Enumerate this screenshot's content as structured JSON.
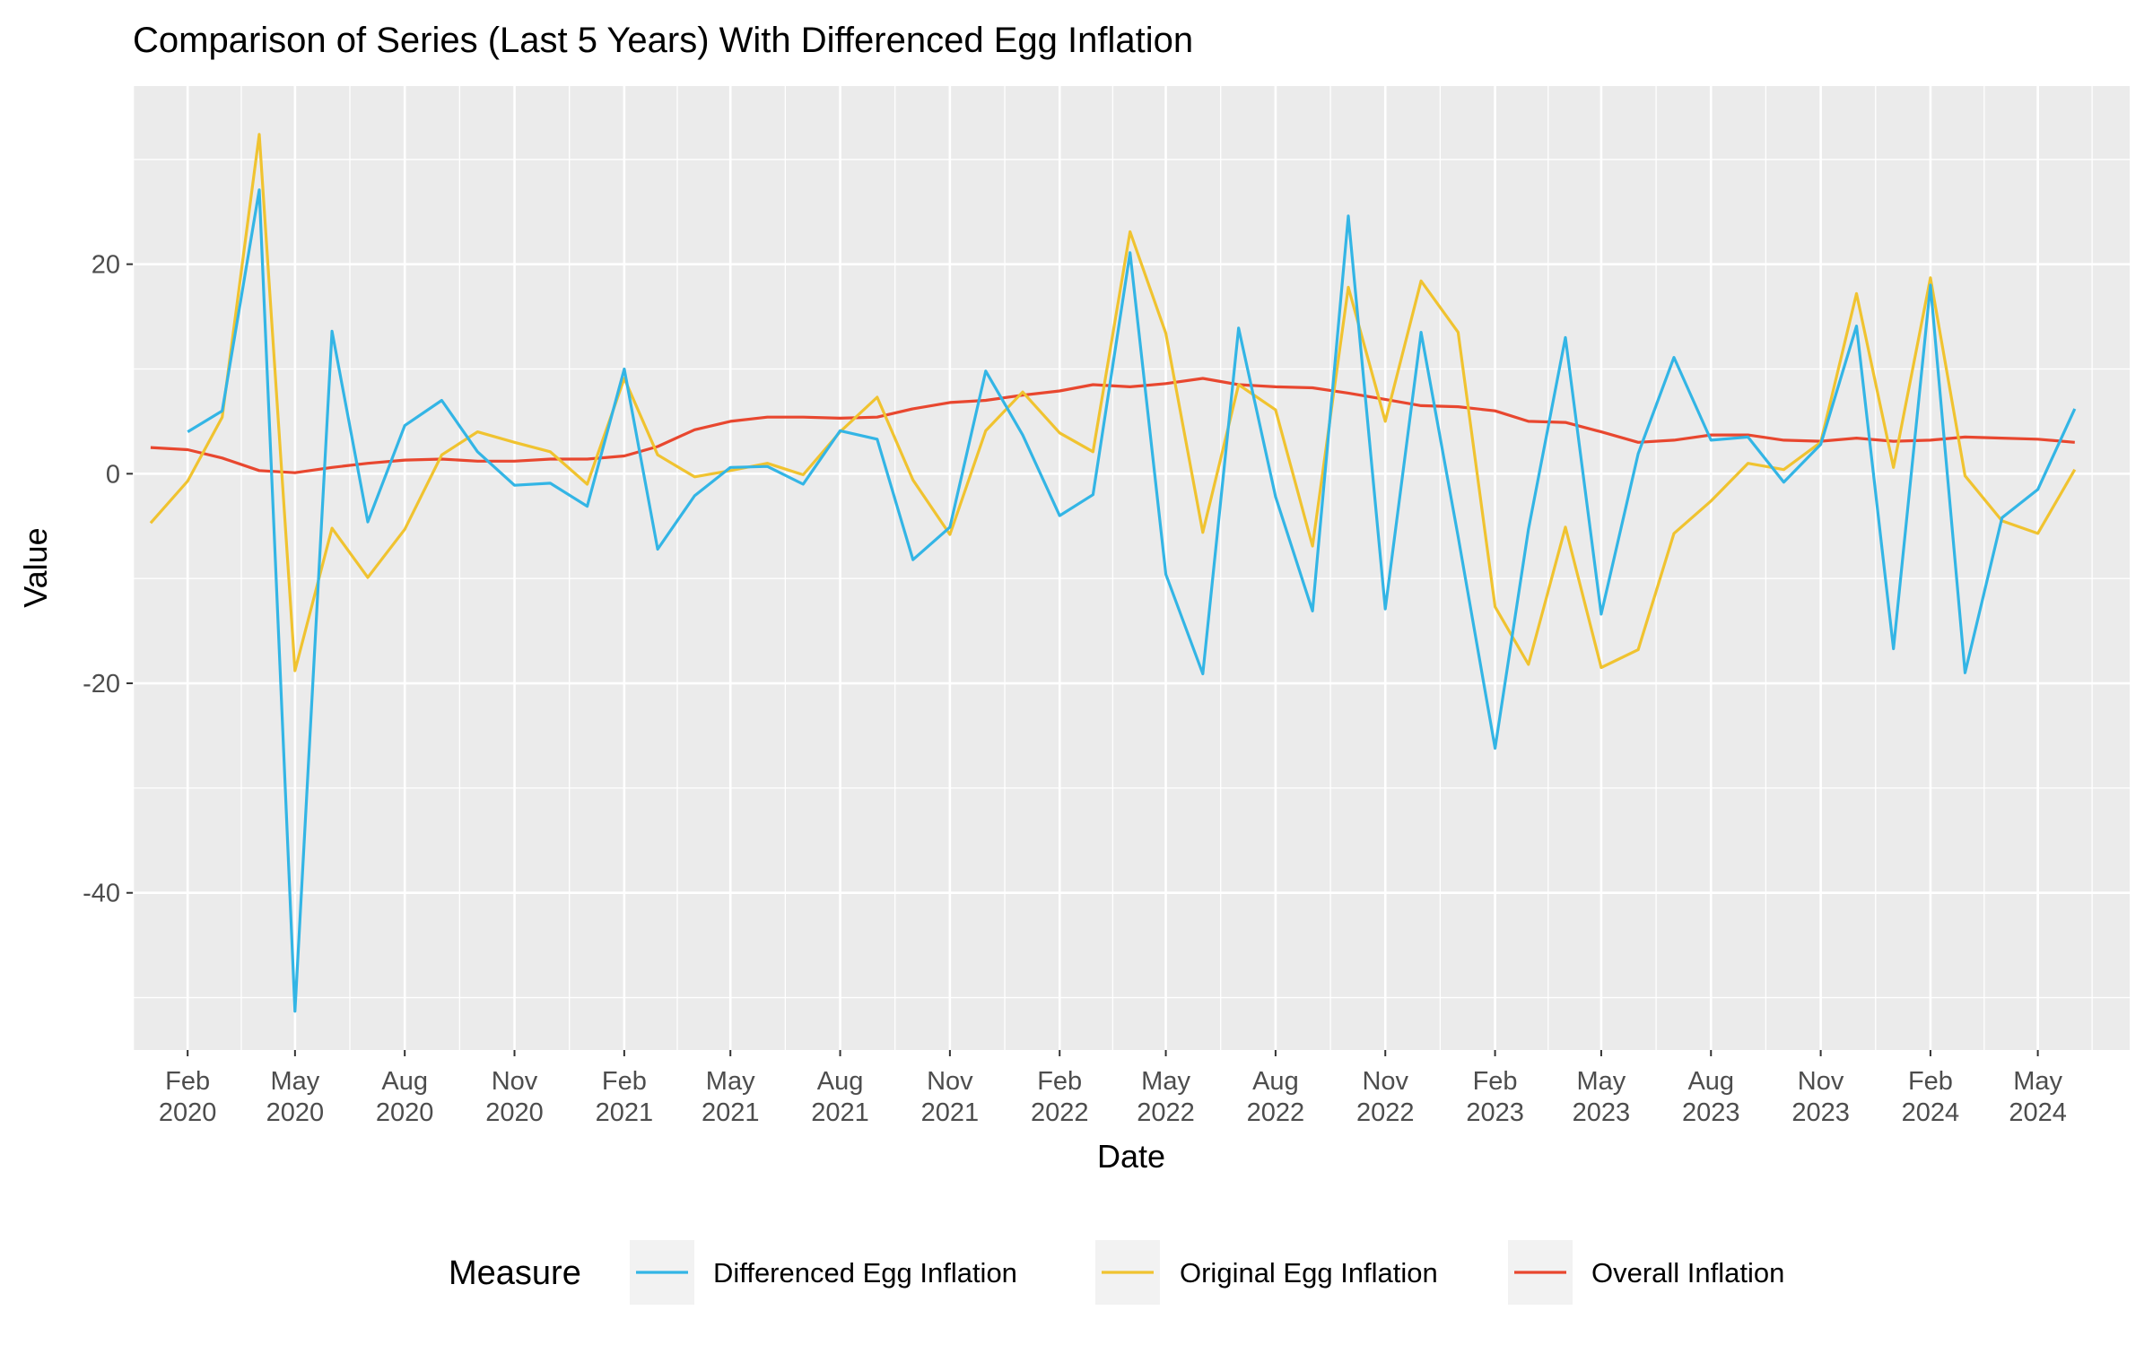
{
  "chart_data": {
    "type": "line",
    "title": "Comparison of Series (Last 5 Years) With Differenced Egg Inflation",
    "xlabel": "Date",
    "ylabel": "Value",
    "ylim": [
      -55,
      37
    ],
    "xlim": [
      "2019-12-17",
      "2024-07-17"
    ],
    "y_ticks": [
      20,
      0,
      -20,
      -40
    ],
    "y_tick_labels": [
      "20",
      "0",
      "-20",
      "-40"
    ],
    "x_ticks": [
      "2020-02-01",
      "2020-05-01",
      "2020-08-01",
      "2020-11-01",
      "2021-02-01",
      "2021-05-01",
      "2021-08-01",
      "2021-11-01",
      "2022-02-01",
      "2022-05-01",
      "2022-08-01",
      "2022-11-01",
      "2023-02-01",
      "2023-05-01",
      "2023-08-01",
      "2023-11-01",
      "2024-02-01",
      "2024-05-01"
    ],
    "x_tick_labels": [
      [
        "Feb",
        "2020"
      ],
      [
        "May",
        "2020"
      ],
      [
        "Aug",
        "2020"
      ],
      [
        "Nov",
        "2020"
      ],
      [
        "Feb",
        "2021"
      ],
      [
        "May",
        "2021"
      ],
      [
        "Aug",
        "2021"
      ],
      [
        "Nov",
        "2021"
      ],
      [
        "Feb",
        "2022"
      ],
      [
        "May",
        "2022"
      ],
      [
        "Aug",
        "2022"
      ],
      [
        "Nov",
        "2022"
      ],
      [
        "Feb",
        "2023"
      ],
      [
        "May",
        "2023"
      ],
      [
        "Aug",
        "2023"
      ],
      [
        "Nov",
        "2023"
      ],
      [
        "Feb",
        "2024"
      ],
      [
        "May",
        "2024"
      ]
    ],
    "grid": true,
    "legend": {
      "title": "Measure",
      "position": "bottom",
      "entries": [
        "Differenced Egg Inflation",
        "Original Egg Inflation",
        "Overall Inflation"
      ]
    },
    "x": [
      "2020-01-01",
      "2020-02-01",
      "2020-03-01",
      "2020-04-01",
      "2020-05-01",
      "2020-06-01",
      "2020-07-01",
      "2020-08-01",
      "2020-09-01",
      "2020-10-01",
      "2020-11-01",
      "2020-12-01",
      "2021-01-01",
      "2021-02-01",
      "2021-03-01",
      "2021-04-01",
      "2021-05-01",
      "2021-06-01",
      "2021-07-01",
      "2021-08-01",
      "2021-09-01",
      "2021-10-01",
      "2021-11-01",
      "2021-12-01",
      "2022-01-01",
      "2022-02-01",
      "2022-03-01",
      "2022-04-01",
      "2022-05-01",
      "2022-06-01",
      "2022-07-01",
      "2022-08-01",
      "2022-09-01",
      "2022-10-01",
      "2022-11-01",
      "2022-12-01",
      "2023-01-01",
      "2023-02-01",
      "2023-03-01",
      "2023-04-01",
      "2023-05-01",
      "2023-06-01",
      "2023-07-01",
      "2023-08-01",
      "2023-09-01",
      "2023-10-01",
      "2023-11-01",
      "2023-12-01",
      "2024-01-01",
      "2024-02-01",
      "2024-03-01",
      "2024-04-01",
      "2024-05-01",
      "2024-06-01"
    ],
    "series": [
      {
        "name": "Differenced Egg Inflation",
        "color": "#33b5e5",
        "values": [
          null,
          4.0,
          6.0,
          27.1,
          -51.3,
          13.6,
          -4.6,
          4.6,
          7.0,
          2.1,
          -1.1,
          -0.9,
          -3.1,
          10.0,
          -7.2,
          -2.1,
          0.6,
          0.7,
          -1.0,
          4.1,
          3.3,
          -8.2,
          -5.1,
          9.8,
          3.7,
          -4.0,
          -2.0,
          21.1,
          -9.6,
          -19.1,
          13.9,
          -2.2,
          -13.1,
          24.6,
          -12.9,
          13.5,
          -6.0,
          -26.2,
          -5.3,
          13.0,
          -13.4,
          1.9,
          11.1,
          3.2,
          3.5,
          -0.8,
          2.8,
          14.1,
          -16.7,
          18.0,
          -19.0,
          -4.2,
          -1.5,
          6.2
        ]
      },
      {
        "name": "Original Egg Inflation",
        "color": "#f0c330",
        "values": [
          -4.7,
          -0.7,
          5.4,
          32.4,
          -18.8,
          -5.2,
          -9.9,
          -5.3,
          1.8,
          4.0,
          3.0,
          2.1,
          -1.0,
          9.1,
          1.8,
          -0.3,
          0.3,
          1.0,
          -0.1,
          4.0,
          7.3,
          -0.6,
          -5.8,
          4.1,
          7.8,
          3.9,
          2.1,
          23.1,
          13.4,
          -5.6,
          8.5,
          6.1,
          -6.9,
          17.8,
          5.0,
          18.4,
          13.5,
          -12.7,
          -18.2,
          -5.1,
          -18.5,
          -16.8,
          -5.7,
          -2.6,
          1.0,
          0.4,
          3.0,
          17.2,
          0.6,
          18.7,
          -0.2,
          -4.5,
          -5.7,
          0.4
        ]
      },
      {
        "name": "Overall Inflation",
        "color": "#e8472f",
        "values": [
          2.5,
          2.3,
          1.5,
          0.3,
          0.1,
          0.6,
          1.0,
          1.3,
          1.4,
          1.2,
          1.2,
          1.4,
          1.4,
          1.7,
          2.6,
          4.2,
          5.0,
          5.4,
          5.4,
          5.3,
          5.4,
          6.2,
          6.8,
          7.0,
          7.5,
          7.9,
          8.5,
          8.3,
          8.6,
          9.1,
          8.5,
          8.3,
          8.2,
          7.7,
          7.1,
          6.5,
          6.4,
          6.0,
          5.0,
          4.9,
          4.0,
          3.0,
          3.2,
          3.7,
          3.7,
          3.2,
          3.1,
          3.4,
          3.1,
          3.2,
          3.5,
          3.4,
          3.3,
          3.0
        ]
      }
    ]
  }
}
